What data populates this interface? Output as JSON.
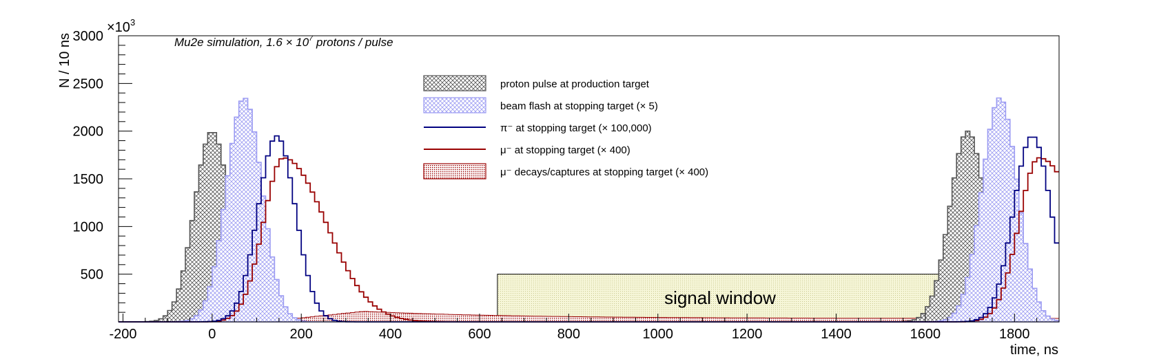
{
  "chart_data": {
    "type": "histogram",
    "title": "Mu2e simulation, 1.6 × 10",
    "title_exp": "7",
    "title_tail": " protons / pulse",
    "xlabel": "time, ns",
    "ylabel": "N / 10 ns",
    "y_multiplier": "×10",
    "y_multiplier_exp": "3",
    "xlim": [
      -210,
      1900
    ],
    "ylim": [
      0,
      3000
    ],
    "x_ticks": [
      -200,
      0,
      200,
      400,
      600,
      800,
      1000,
      1200,
      1400,
      1600,
      1800
    ],
    "y_ticks": [
      500,
      1000,
      1500,
      2000,
      2500,
      3000
    ],
    "colors": {
      "proton": "#555555",
      "flash": "#9b9bf2",
      "pion": "#000080",
      "muon": "#990000",
      "signal_fill": "#f6f6d8"
    },
    "legend": {
      "placement": "top-center",
      "entries": [
        {
          "key": "proton",
          "style": "hatched-box",
          "label": "proton pulse at production target"
        },
        {
          "key": "flash",
          "style": "hatched-box",
          "label": "beam flash at stopping target (× 5)"
        },
        {
          "key": "pion",
          "style": "line",
          "label": "π⁻ at stopping target (× 100,000)"
        },
        {
          "key": "muon",
          "style": "line",
          "label": "μ⁻ at stopping target (× 400)"
        },
        {
          "key": "muon_decay",
          "style": "dotted-box",
          "label": "μ⁻ decays/captures at stopping target (× 400)"
        }
      ]
    },
    "annotation": {
      "label": "signal window",
      "x_range": [
        640,
        1650
      ],
      "y_range": [
        0,
        500
      ]
    },
    "series": [
      {
        "key": "proton",
        "label": "proton pulse at production target",
        "shape": "gauss",
        "peaks": [
          0,
          1695
        ],
        "amplitude": 2000,
        "sigma": 40,
        "bin_width": 10
      },
      {
        "key": "flash",
        "label": "beam flash at stopping target (× 5)",
        "shape": "gauss",
        "peaks": [
          72,
          1767
        ],
        "amplitude": 2350,
        "sigma": 40,
        "bin_width": 10
      },
      {
        "key": "pion",
        "label": "π⁻ at stopping target (× 100,000)",
        "shape": "gauss",
        "peaks": [
          145,
          1840
        ],
        "amplitude": 1950,
        "sigma": 42,
        "bin_width": 10
      },
      {
        "key": "muon",
        "label": "μ⁻ at stopping target (× 400)",
        "shape": "skewed",
        "peaks": [
          160,
          1855
        ],
        "amplitude": 1720,
        "sigma_rise": 45,
        "sigma_fall": 95,
        "bin_width": 10
      },
      {
        "key": "muon_decay",
        "label": "μ⁻ decays/captures at stopping target (× 400)",
        "shape": "decay",
        "start": 150,
        "peak": 340,
        "amplitude": 110,
        "tail": 35,
        "bin_width": 10
      }
    ]
  }
}
